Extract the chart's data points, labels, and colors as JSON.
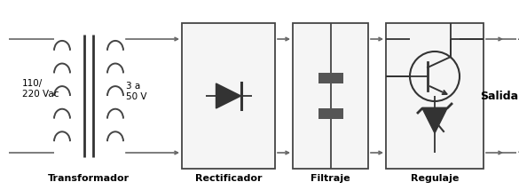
{
  "bg_color": "#ffffff",
  "line_color": "#666666",
  "box_edge": "#444444",
  "text_color": "#000000",
  "labels": {
    "transformador": "Transformador",
    "rectificador": "Rectificador",
    "filtraje": "Filtraje",
    "regulaje": "Regulaje",
    "salida": "Salida",
    "v_input": "110/\n220 Vac",
    "v_output": "3 a\n50 V",
    "plus": "+",
    "minus": "-"
  },
  "figsize": [
    5.85,
    2.14
  ],
  "dpi": 100
}
